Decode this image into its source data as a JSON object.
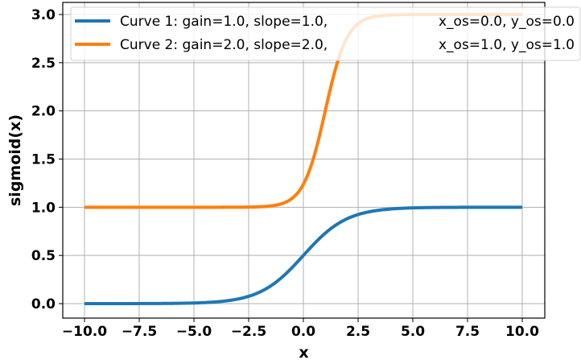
{
  "chart_data": {
    "type": "line",
    "title": "",
    "xlabel": "x",
    "ylabel": "sigmoid(x)",
    "xlim": [
      -11,
      11
    ],
    "ylim": [
      -0.15,
      3.15
    ],
    "grid": true,
    "legend_position": "upper right (overflowing axes)",
    "x_ticks": [
      -10.0,
      -7.5,
      -5.0,
      -2.5,
      0.0,
      2.5,
      5.0,
      7.5,
      10.0
    ],
    "x_tick_labels": [
      "−10.0",
      "−7.5",
      "−5.0",
      "−2.5",
      "0.0",
      "2.5",
      "5.0",
      "7.5",
      "10.0"
    ],
    "y_ticks": [
      0.0,
      0.5,
      1.0,
      1.5,
      2.0,
      2.5,
      3.0
    ],
    "y_tick_labels": [
      "0.0",
      "0.5",
      "1.0",
      "1.5",
      "2.0",
      "2.5",
      "3.0"
    ],
    "series": [
      {
        "name": "Curve 1",
        "legend_label": "Curve 1: gain=1.0, slope=1.0,",
        "legend_label_right": "x_os=0.0, y_os=0.0",
        "color": "#1f77b4",
        "gain": 1.0,
        "slope": 1.0,
        "x_os": 0.0,
        "y_os": 0.0,
        "x": [
          -10,
          -7.5,
          -5,
          -2.5,
          -1,
          0,
          1,
          2.5,
          5,
          7.5,
          10
        ],
        "y": [
          0.0,
          0.001,
          0.007,
          0.076,
          0.269,
          0.5,
          0.731,
          0.924,
          0.993,
          0.999,
          1.0
        ]
      },
      {
        "name": "Curve 2",
        "legend_label": "Curve 2: gain=2.0, slope=2.0,",
        "legend_label_right": "x_os=1.0, y_os=1.0",
        "color": "#ff7f0e",
        "gain": 2.0,
        "slope": 2.0,
        "x_os": 1.0,
        "y_os": 1.0,
        "x": [
          -10,
          -2.5,
          -1,
          0,
          0.5,
          1,
          1.5,
          2,
          2.5,
          5,
          10
        ],
        "y": [
          1.0,
          1.002,
          1.036,
          1.238,
          1.538,
          2.0,
          2.462,
          2.762,
          2.905,
          3.0,
          3.0
        ]
      }
    ]
  }
}
